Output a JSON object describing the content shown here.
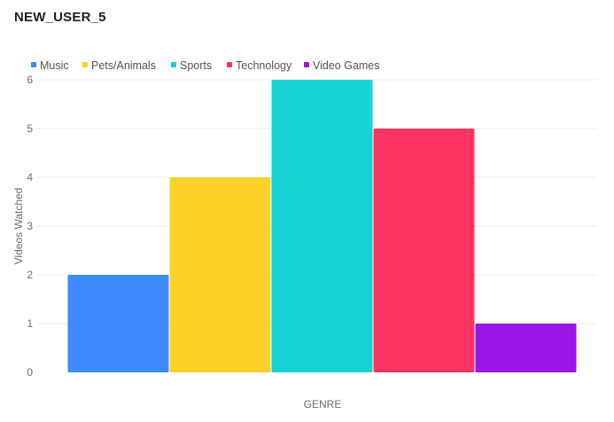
{
  "title": "NEW_USER_5",
  "chart_data": {
    "type": "bar",
    "title": "NEW_USER_5",
    "xlabel": "GENRE",
    "ylabel": "Videos Watched",
    "ylim": [
      0,
      6
    ],
    "yticks": [
      "0",
      "1",
      "2",
      "3",
      "4",
      "5",
      "6"
    ],
    "grid": true,
    "legend_position": "top-left",
    "series": [
      {
        "name": "Music",
        "value": 2,
        "color": "#3e8bfb"
      },
      {
        "name": "Pets/Animals",
        "value": 4,
        "color": "#fdd02a"
      },
      {
        "name": "Sports",
        "value": 6,
        "color": "#16d3d2"
      },
      {
        "name": "Technology",
        "value": 5,
        "color": "#fd3563"
      },
      {
        "name": "Video Games",
        "value": 1,
        "color": "#9b14e8"
      }
    ]
  }
}
